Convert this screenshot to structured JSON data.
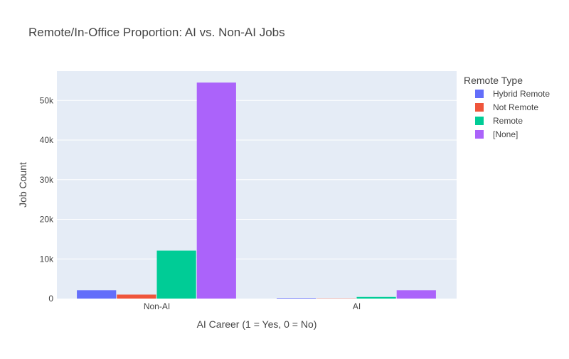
{
  "chart_data": {
    "type": "bar",
    "title": "Remote/In-Office Proportion: AI vs. Non-AI Jobs",
    "xlabel": "AI Career (1 = Yes, 0 = No)",
    "ylabel": "Job Count",
    "categories": [
      "Non-AI",
      "AI"
    ],
    "ylim": [
      0,
      57400
    ],
    "y_ticks": [
      0,
      10000,
      20000,
      30000,
      40000,
      50000
    ],
    "y_tick_labels": [
      "0",
      "10k",
      "20k",
      "30k",
      "40k",
      "50k"
    ],
    "grid": true,
    "legend": {
      "title": "Remote Type",
      "placement": "right"
    },
    "series": [
      {
        "name": "Hybrid Remote",
        "color": "#636efa",
        "values": [
          2100,
          150
        ]
      },
      {
        "name": "Not Remote",
        "color": "#ef553b",
        "values": [
          1000,
          60
        ]
      },
      {
        "name": "Remote",
        "color": "#00cc96",
        "values": [
          12100,
          400
        ]
      },
      {
        "name": "[None]",
        "color": "#ab63fa",
        "values": [
          54500,
          2100
        ]
      }
    ],
    "colors": {
      "plot_bg": "#e5ecf6",
      "grid": "#ffffff"
    }
  }
}
